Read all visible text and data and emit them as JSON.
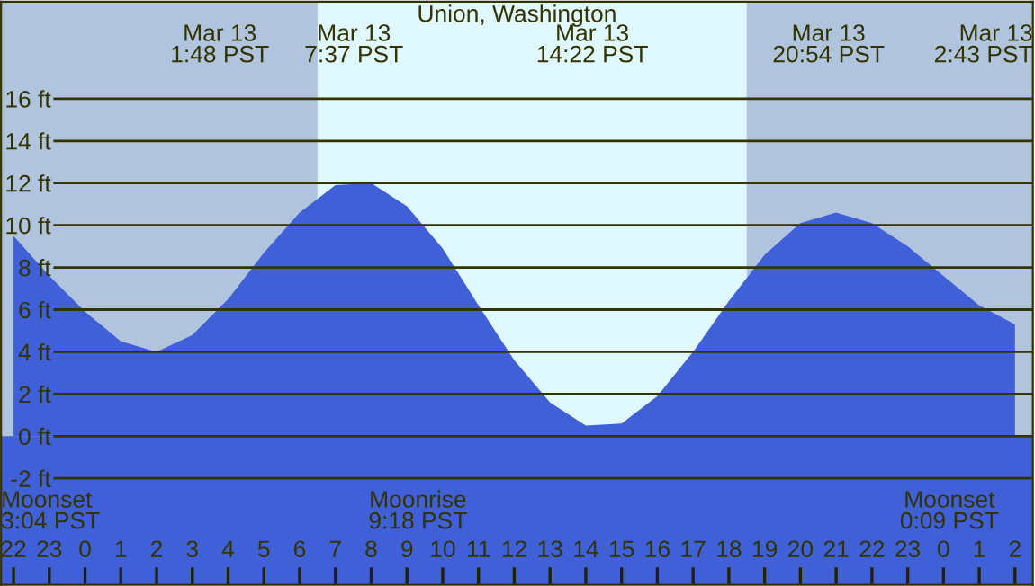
{
  "chart_data": {
    "type": "area",
    "title": "Union, Washington",
    "categories": [
      "22",
      "23",
      "0",
      "1",
      "2",
      "3",
      "4",
      "5",
      "6",
      "7",
      "8",
      "9",
      "10",
      "11",
      "12",
      "13",
      "14",
      "15",
      "16",
      "17",
      "18",
      "19",
      "20",
      "21",
      "22",
      "23",
      "0",
      "1",
      "2"
    ],
    "series": [
      {
        "color": "#4060d8",
        "values": [
          9.5,
          7.6,
          5.9,
          4.5,
          4.0,
          4.8,
          6.5,
          8.7,
          10.6,
          11.9,
          12.0,
          10.9,
          8.9,
          6.2,
          3.6,
          1.6,
          0.5,
          0.6,
          1.9,
          4.0,
          6.4,
          8.6,
          10.1,
          10.6,
          10.1,
          9.0,
          7.6,
          6.2,
          5.3
        ]
      }
    ],
    "ylim": [
      -7.05,
      20.6
    ],
    "yticks": [
      {
        "value": -2,
        "label": "-2 ft"
      },
      {
        "value": 0,
        "label": "0 ft"
      },
      {
        "value": 2,
        "label": "2 ft"
      },
      {
        "value": 4,
        "label": "4 ft"
      },
      {
        "value": 6,
        "label": "6 ft"
      },
      {
        "value": 8,
        "label": "8 ft"
      },
      {
        "value": 10,
        "label": "10 ft"
      },
      {
        "value": 12,
        "label": "12 ft"
      },
      {
        "value": 14,
        "label": "14 ft"
      },
      {
        "value": 16,
        "label": "16 ft"
      }
    ],
    "grid": "y",
    "bands": [
      {
        "axis": "x",
        "from": "7",
        "to": "18",
        "color": "#e0f8ff"
      },
      {
        "axis": "y",
        "from": -7.05,
        "to": 0,
        "color": "#4060d8"
      }
    ],
    "annotations": [
      "Mar 13\n1:48 PST",
      "Mar 13\n7:37 PST",
      "Mar 13\n14:22 PST",
      "Mar 13\n20:54 PST",
      "Mar 13\n2:43 PST",
      "Moonset\n3:04 PST",
      "Moonrise\n9:18 PST",
      "Moonset\n0:09 PST"
    ]
  }
}
